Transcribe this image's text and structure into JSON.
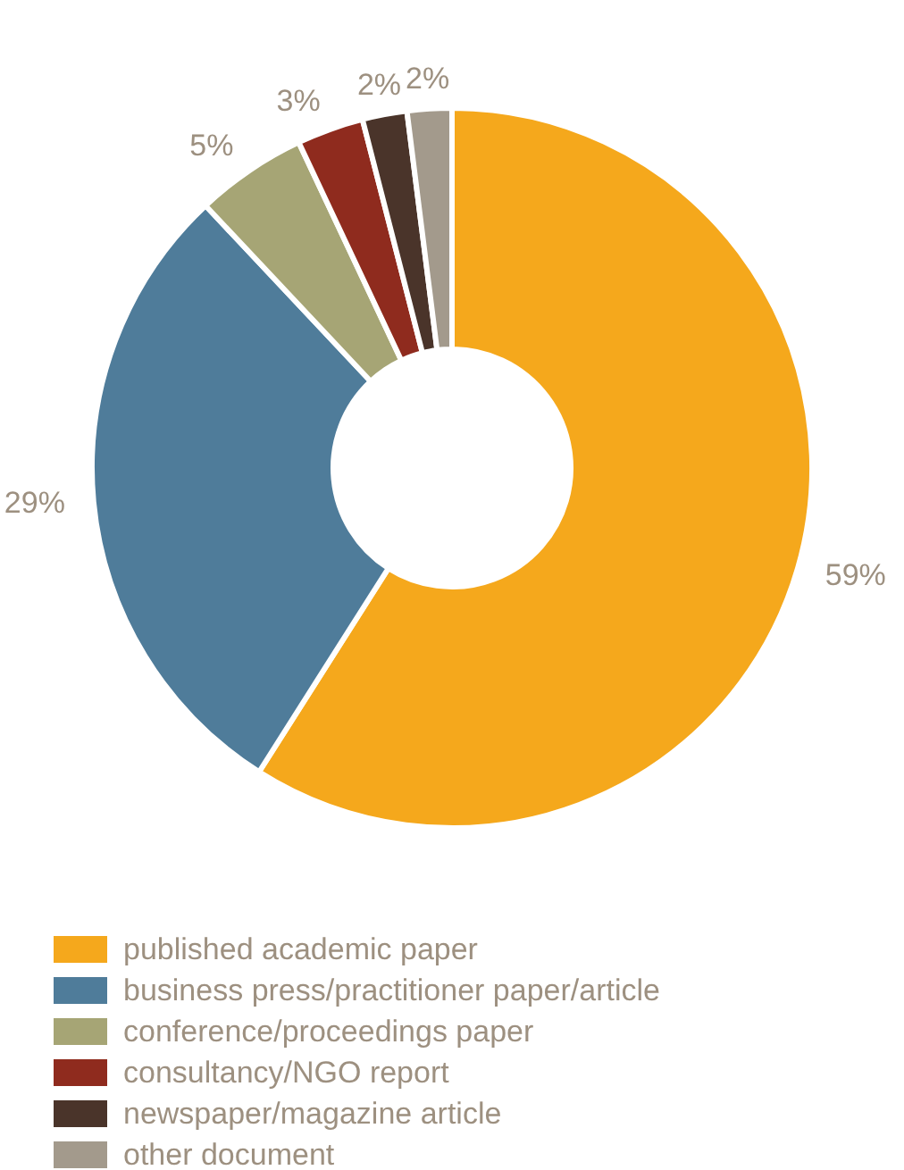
{
  "chart_data": {
    "type": "donut",
    "categories": [
      "published academic paper",
      "business press/practitioner paper/article",
      "conference/proceedings paper",
      "consultancy/NGO report",
      "newspaper/magazine article",
      "other document"
    ],
    "values": [
      59,
      29,
      5,
      3,
      2,
      2
    ],
    "value_labels": [
      "59%",
      "29%",
      "5%",
      "3%",
      "2%",
      "2%"
    ],
    "colors": [
      "#f5a81c",
      "#4f7c9a",
      "#a6a575",
      "#8f2b1e",
      "#4a342a",
      "#a39a8c"
    ],
    "legend": "bottom"
  }
}
